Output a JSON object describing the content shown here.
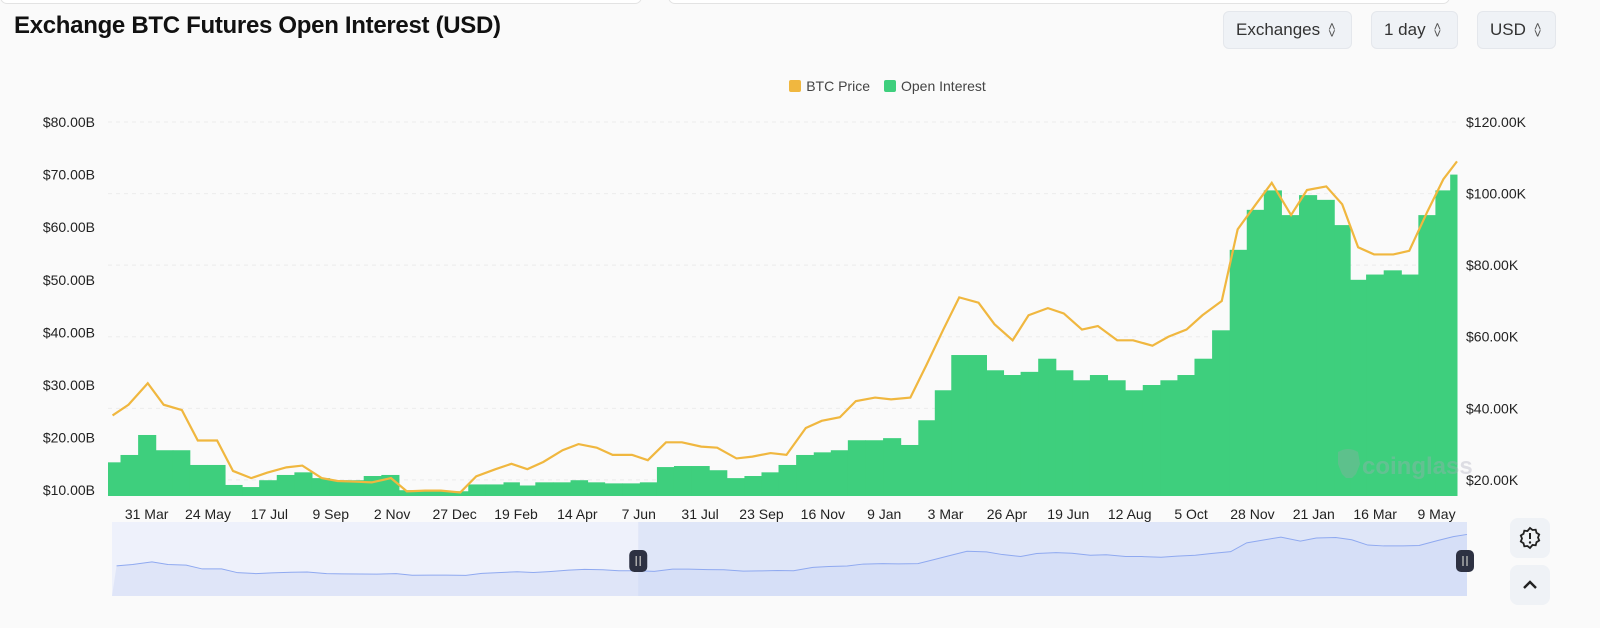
{
  "header": {
    "title": "Exchange BTC Futures Open Interest (USD)"
  },
  "controls": {
    "exchanges": "Exchanges",
    "interval": "1 day",
    "currency": "USD"
  },
  "watermark": "coinglass",
  "colors": {
    "price": "#f0b73f",
    "open_interest": "#3ecf7d",
    "navigator_fill": "#dfe6f8",
    "navigator_line": "#8fa9f0",
    "handle": "#2d3142"
  },
  "chart_data": {
    "type": "bar+line",
    "title": "Exchange BTC Futures Open Interest (USD)",
    "legend": {
      "position": "top-center",
      "entries": [
        "BTC Price",
        "Open Interest"
      ]
    },
    "x_tick_labels": [
      "31 Mar",
      "24 May",
      "17 Jul",
      "9 Sep",
      "2 Nov",
      "27 Dec",
      "19 Feb",
      "14 Apr",
      "7 Jun",
      "31 Jul",
      "23 Sep",
      "16 Nov",
      "9 Jan",
      "3 Mar",
      "26 Apr",
      "19 Jun",
      "12 Aug",
      "5 Oct",
      "28 Nov",
      "21 Jan",
      "16 Mar",
      "9 May"
    ],
    "x_tick_dates": [
      "2022-03-31",
      "2022-05-24",
      "2022-07-17",
      "2022-09-09",
      "2022-11-02",
      "2022-12-27",
      "2023-02-19",
      "2023-04-14",
      "2023-06-07",
      "2023-07-31",
      "2023-09-23",
      "2023-11-16",
      "2024-01-09",
      "2024-03-03",
      "2024-04-26",
      "2024-06-19",
      "2024-08-12",
      "2024-10-05",
      "2024-11-28",
      "2025-01-21",
      "2025-03-16",
      "2025-05-09"
    ],
    "x_range": [
      "2022-02-25",
      "2025-05-27"
    ],
    "left_axis": {
      "ticks": [
        "$10.00B",
        "$20.00B",
        "$30.00B",
        "$40.00B",
        "$50.00B",
        "$60.00B",
        "$70.00B",
        "$80.00B"
      ],
      "tick_values": [
        10,
        20,
        30,
        40,
        50,
        60,
        70,
        80
      ],
      "ylim": [
        8.9,
        80
      ],
      "unit": "USD billions"
    },
    "right_axis": {
      "ticks": [
        "$20.00K",
        "$40.00K",
        "$60.00K",
        "$80.00K",
        "$100.00K",
        "$120.00K"
      ],
      "tick_values": [
        20,
        40,
        60,
        80,
        100,
        120
      ],
      "ylim": [
        15.5,
        120
      ],
      "unit": "USD thousands"
    },
    "grid": true,
    "x": [
      "2022-03-01",
      "2022-03-15",
      "2022-04-01",
      "2022-04-15",
      "2022-05-01",
      "2022-05-15",
      "2022-06-01",
      "2022-06-15",
      "2022-07-01",
      "2022-07-15",
      "2022-08-01",
      "2022-08-15",
      "2022-09-01",
      "2022-09-15",
      "2022-10-01",
      "2022-10-15",
      "2022-11-01",
      "2022-11-15",
      "2022-12-01",
      "2022-12-15",
      "2023-01-01",
      "2023-01-15",
      "2023-02-01",
      "2023-02-15",
      "2023-03-01",
      "2023-03-15",
      "2023-04-01",
      "2023-04-15",
      "2023-05-01",
      "2023-05-15",
      "2023-06-01",
      "2023-06-15",
      "2023-07-01",
      "2023-07-15",
      "2023-08-01",
      "2023-08-15",
      "2023-09-01",
      "2023-09-15",
      "2023-10-01",
      "2023-10-15",
      "2023-11-01",
      "2023-11-15",
      "2023-12-01",
      "2023-12-15",
      "2024-01-01",
      "2024-01-15",
      "2024-02-01",
      "2024-02-15",
      "2024-03-01",
      "2024-03-15",
      "2024-04-01",
      "2024-04-15",
      "2024-05-01",
      "2024-05-15",
      "2024-06-01",
      "2024-06-15",
      "2024-07-01",
      "2024-07-15",
      "2024-08-01",
      "2024-08-15",
      "2024-09-01",
      "2024-09-15",
      "2024-10-01",
      "2024-10-15",
      "2024-11-01",
      "2024-11-15",
      "2024-12-01",
      "2024-12-15",
      "2025-01-01",
      "2025-01-15",
      "2025-02-01",
      "2025-02-15",
      "2025-03-01",
      "2025-03-15",
      "2025-04-01",
      "2025-04-15",
      "2025-05-01",
      "2025-05-15",
      "2025-05-27"
    ],
    "series": [
      {
        "name": "Open Interest",
        "type": "bar",
        "axis": "left",
        "values": [
          15.3,
          16.7,
          20.5,
          17.6,
          17.6,
          14.8,
          14.8,
          11,
          10.6,
          11.9,
          12.9,
          13.4,
          12.3,
          11.9,
          11.9,
          12.7,
          12.9,
          10,
          10,
          9.8,
          9.8,
          11.1,
          11.1,
          11.5,
          10.9,
          11.5,
          11.5,
          11.9,
          11.5,
          11.3,
          11.3,
          11.5,
          14.4,
          14.6,
          14.6,
          13.8,
          12.3,
          12.7,
          13.4,
          14.8,
          16.7,
          17.2,
          17.6,
          19.5,
          19.5,
          19.9,
          18.6,
          23.3,
          29,
          35.7,
          35.7,
          32.8,
          31.9,
          32.5,
          35,
          32.8,
          30.9,
          31.9,
          30.9,
          29,
          30,
          30.9,
          31.9,
          35,
          40.4,
          55.7,
          63.3,
          67,
          62.3,
          66.1,
          65.2,
          60.4,
          50,
          51,
          51.8,
          51,
          62.3,
          67,
          70
        ]
      },
      {
        "name": "BTC Price",
        "type": "line",
        "axis": "right",
        "values": [
          38,
          41,
          47,
          41,
          39.5,
          31,
          31,
          22.5,
          20.5,
          22,
          23.5,
          24,
          20.5,
          19.7,
          19.5,
          19.3,
          20.5,
          16.8,
          17,
          17,
          16.5,
          21,
          23,
          24.5,
          23,
          25,
          28.3,
          30,
          29,
          27,
          27,
          25.5,
          30.5,
          30.5,
          29.3,
          29,
          26,
          26.5,
          27.5,
          27,
          34.5,
          36.5,
          37.5,
          42,
          43,
          42.5,
          43,
          52,
          62,
          71,
          69.5,
          63.5,
          59,
          66,
          68,
          66.5,
          62,
          63,
          59,
          59,
          57.5,
          60,
          62,
          66,
          70,
          90,
          97,
          103,
          94,
          101,
          102,
          97,
          85,
          83,
          83,
          84,
          95,
          104,
          109
        ]
      }
    ],
    "navigator": {
      "selected_range": [
        "2023-06-01",
        "2025-05-27"
      ]
    }
  }
}
